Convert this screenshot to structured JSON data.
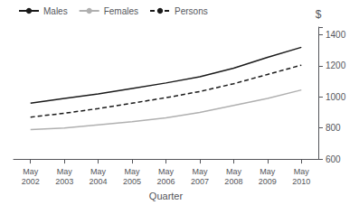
{
  "chart_data": {
    "type": "line",
    "xlabel": "Quarter",
    "annotation": "$",
    "categories": [
      "May\n2002",
      "May\n2003",
      "May\n2004",
      "May\n2005",
      "May\n2006",
      "May\n2007",
      "May\n2008",
      "May\n2009",
      "May\n2010"
    ],
    "series": [
      {
        "name": "Males",
        "color": "#1a1a1a",
        "line_style": "solid",
        "values": [
          960,
          990,
          1020,
          1055,
          1090,
          1130,
          1185,
          1255,
          1320
        ]
      },
      {
        "name": "Females",
        "color": "#b0b0b0",
        "line_style": "solid",
        "values": [
          790,
          800,
          820,
          840,
          865,
          900,
          945,
          990,
          1045
        ]
      },
      {
        "name": "Persons",
        "color": "#1a1a1a",
        "line_style": "dashed",
        "values": [
          870,
          895,
          925,
          960,
          995,
          1035,
          1085,
          1145,
          1205
        ]
      }
    ],
    "ylim": [
      600,
      1450
    ],
    "yticks": [
      600,
      800,
      1000,
      1200,
      1400
    ],
    "legend": "upper left",
    "grid": false
  }
}
